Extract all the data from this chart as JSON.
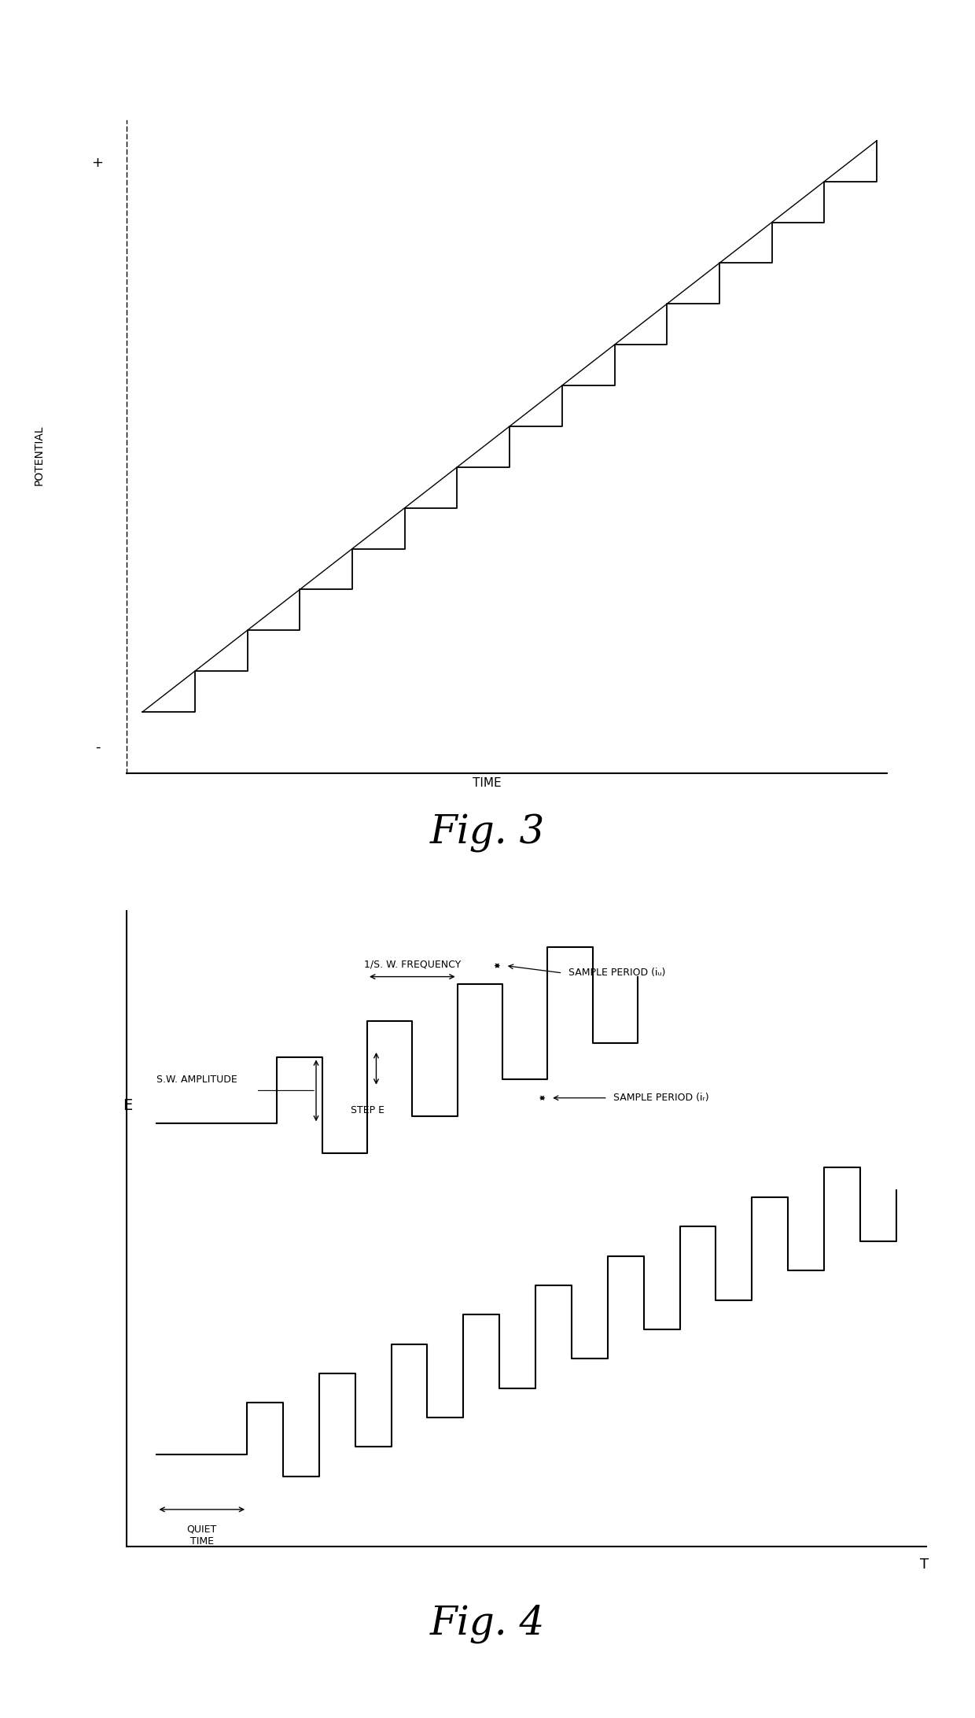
{
  "fig3_title": "Fig. 3",
  "fig3_ylabel": "POTENTIAL",
  "fig3_ylabel_plus": "+",
  "fig3_ylabel_minus": "-",
  "fig3_xlabel": "TIME",
  "fig4_title": "Fig. 4",
  "fig4_ylabel": "E",
  "fig4_xlabel": "T",
  "fig4_label_sw_amplitude": "S.W. AMPLITUDE",
  "fig4_label_sw_frequency": "1/S. W. FREQUENCY",
  "fig4_label_step_e": "STEP E",
  "fig4_label_sample_if": "SAMPLE PERIOD (iᵤ)",
  "fig4_label_sample_ir": "SAMPLE PERIOD (iᵣ)",
  "fig4_label_quiet_time": "QUIET\nTIME",
  "n_steps": 14,
  "line_color": "#000000",
  "bg_color": "#ffffff"
}
